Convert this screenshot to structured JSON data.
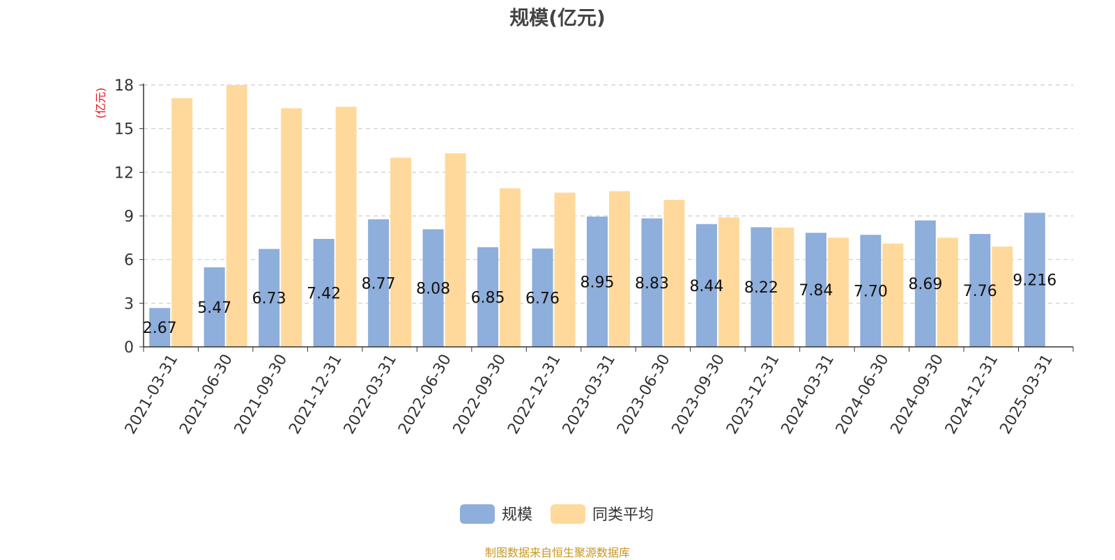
{
  "chart_data": {
    "type": "bar",
    "title": "规模(亿元)",
    "ylabel": "(亿元)",
    "ylim": [
      0,
      18
    ],
    "yticks": [
      0,
      3,
      6,
      9,
      12,
      15,
      18
    ],
    "grid": true,
    "legend_position": "bottom-center",
    "categories": [
      "2021-03-31",
      "2021-06-30",
      "2021-09-30",
      "2021-12-31",
      "2022-03-31",
      "2022-06-30",
      "2022-09-30",
      "2022-12-31",
      "2023-03-31",
      "2023-06-30",
      "2023-09-30",
      "2023-12-31",
      "2024-03-31",
      "2024-06-30",
      "2024-09-30",
      "2024-12-31",
      "2025-03-31"
    ],
    "series": [
      {
        "name": "规模",
        "color": "#8eaedb",
        "values": [
          2.67,
          5.47,
          6.73,
          7.42,
          8.77,
          8.08,
          6.85,
          6.76,
          8.95,
          8.83,
          8.44,
          8.22,
          7.84,
          7.7,
          8.69,
          7.76,
          9.216
        ],
        "labels": [
          "2.67",
          "5.47",
          "6.73",
          "7.42",
          "8.77",
          "8.08",
          "6.85",
          "6.76",
          "8.95",
          "8.83",
          "8.44",
          "8.22",
          "7.84",
          "7.70",
          "8.69",
          "7.76",
          "9.216"
        ]
      },
      {
        "name": "同类平均",
        "color": "#ffd99b",
        "values": [
          17.1,
          18.0,
          16.4,
          16.5,
          13.0,
          13.3,
          10.9,
          10.6,
          10.7,
          10.1,
          8.9,
          8.2,
          7.5,
          7.1,
          7.5,
          6.9,
          null
        ]
      }
    ],
    "axis_label_color": "#e0121a"
  },
  "footer": {
    "source": "制图数据来自恒生聚源数据库"
  }
}
